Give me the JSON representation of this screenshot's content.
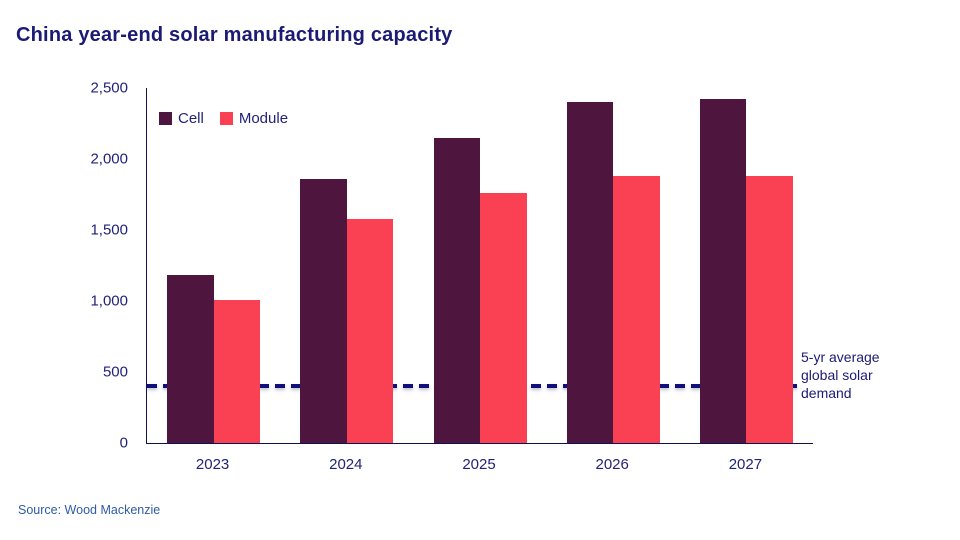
{
  "title": "China year-end solar manufacturing capacity",
  "source": "Source: Wood Mackenzie",
  "colors": {
    "title_text": "#1b1b75",
    "axis_line": "#10104d",
    "tick_text": "#22227a",
    "cell_bar": "#4e153f",
    "module_bar": "#fa4153",
    "reference_line": "#10107a",
    "source_text": "#2e5ba6"
  },
  "chart_data": {
    "type": "bar",
    "title": "China year-end solar manufacturing capacity",
    "categories": [
      "2023",
      "2024",
      "2025",
      "2026",
      "2027"
    ],
    "series": [
      {
        "name": "Cell",
        "color": "#4e153f",
        "values": [
          1180,
          1860,
          2150,
          2400,
          2420
        ]
      },
      {
        "name": "Module",
        "color": "#fa4153",
        "values": [
          1010,
          1580,
          1760,
          1880,
          1880
        ]
      }
    ],
    "reference_line": {
      "label": "5-yr average global solar demand",
      "value": 400,
      "color": "#10107a",
      "style": "dashed"
    },
    "xlabel": "",
    "ylabel": "",
    "ylim": [
      0,
      2500
    ],
    "yticks": [
      0,
      500,
      1000,
      1500,
      2000,
      2500
    ],
    "ytick_labels": [
      "0",
      "500",
      "1,000",
      "1,500",
      "2,000",
      "2,500"
    ],
    "legend_position": "top-left-inside",
    "grid": false
  }
}
